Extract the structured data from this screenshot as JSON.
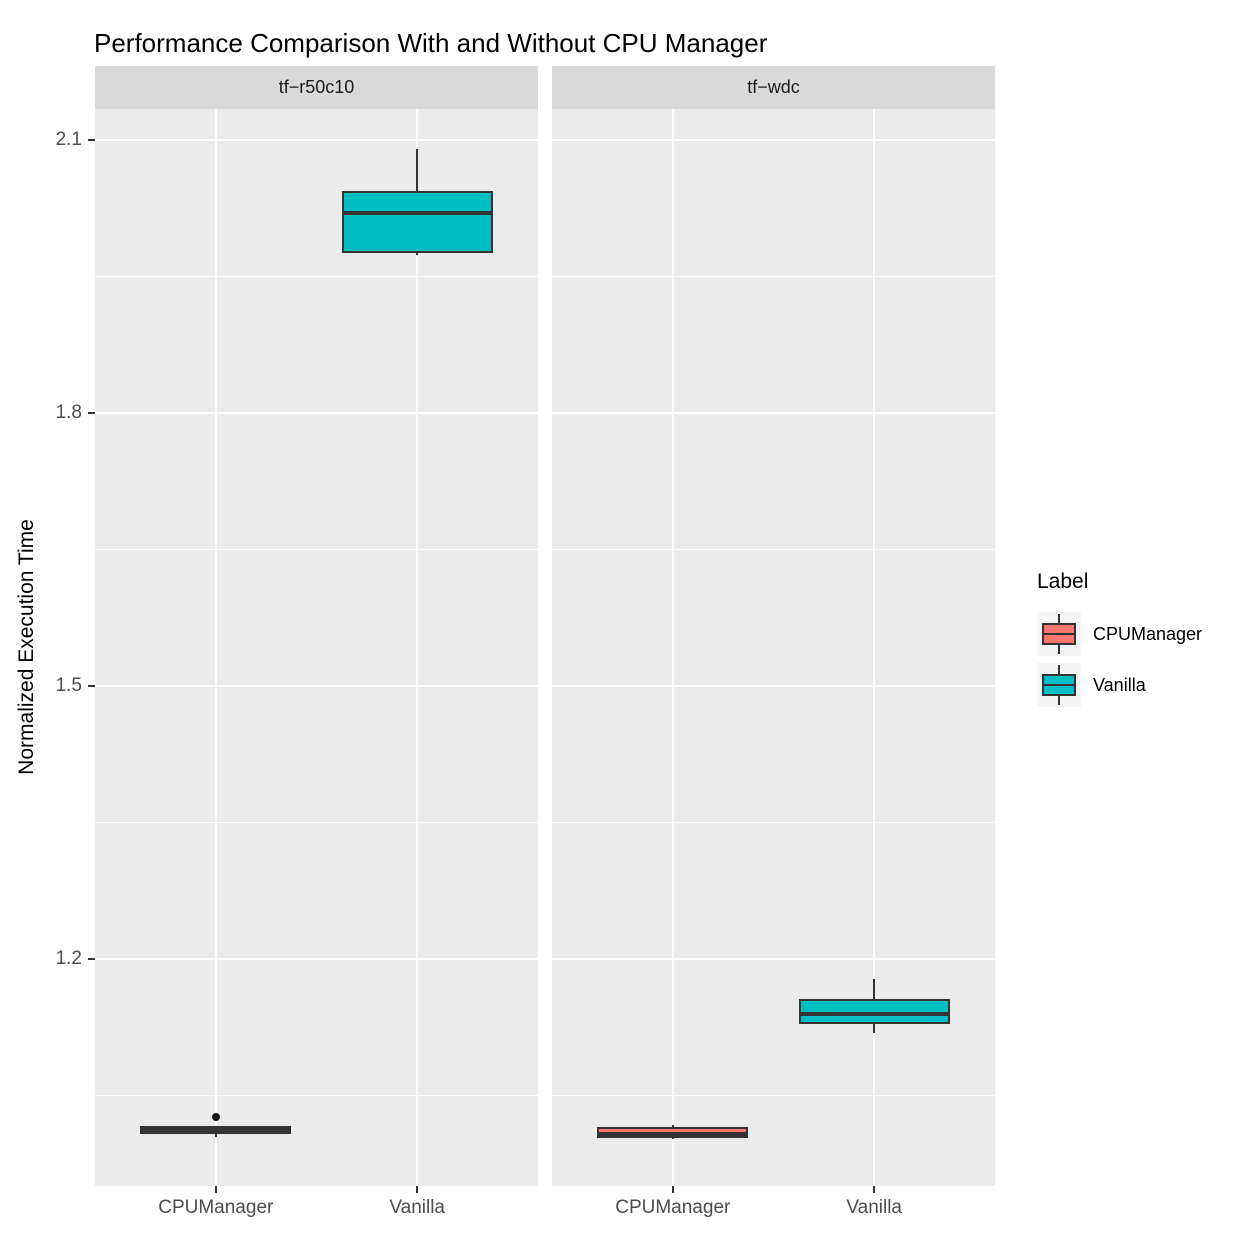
{
  "chart_data": {
    "type": "boxplot",
    "title": "Performance Comparison With and Without CPU Manager",
    "ylabel": "Normalized Execution Time",
    "xlabel": "",
    "categories": [
      "CPUManager",
      "Vanilla"
    ],
    "facets": [
      {
        "label": "tf−r50c10",
        "boxes": [
          {
            "category": "CPUManager",
            "group": "CPUManager",
            "whisker_low": 1.004,
            "q1": 1.008,
            "median": 1.012,
            "q3": 1.016,
            "whisker_high": 1.016,
            "outliers": [
              1.026
            ]
          },
          {
            "category": "Vanilla",
            "group": "Vanilla",
            "whisker_low": 1.974,
            "q1": 1.976,
            "median": 2.02,
            "q3": 2.044,
            "whisker_high": 2.09,
            "outliers": []
          }
        ]
      },
      {
        "label": "tf−wdc",
        "boxes": [
          {
            "category": "CPUManager",
            "group": "CPUManager",
            "whisker_low": 1.002,
            "q1": 1.003,
            "median": 1.008,
            "q3": 1.015,
            "whisker_high": 1.017,
            "outliers": []
          },
          {
            "category": "Vanilla",
            "group": "Vanilla",
            "whisker_low": 1.119,
            "q1": 1.129,
            "median": 1.14,
            "q3": 1.156,
            "whisker_high": 1.178,
            "outliers": []
          }
        ]
      }
    ],
    "y_ticks": [
      {
        "value": 1.2,
        "label": "1.2"
      },
      {
        "value": 1.5,
        "label": "1.5"
      },
      {
        "value": 1.8,
        "label": "1.8"
      },
      {
        "value": 2.1,
        "label": "2.1"
      }
    ],
    "y_minor_ticks": [
      1.05,
      1.35,
      1.65,
      1.95
    ],
    "ylim": [
      0.9505,
      2.1341
    ],
    "grid": true,
    "legend": {
      "title": "Label",
      "position": "right",
      "entries": [
        {
          "label": "CPUManager",
          "color": "#F8766D"
        },
        {
          "label": "Vanilla",
          "color": "#00BFC4"
        }
      ]
    },
    "colors": {
      "CPUManager": "#F8766D",
      "Vanilla": "#00BFC4",
      "box_border": "#333333",
      "panel_bg": "#EBEBEB",
      "strip_bg": "#D9D9D9",
      "grid": "#FFFFFF",
      "axis_text": "#4D4D4D",
      "outlier": "#1A1A1A"
    }
  }
}
